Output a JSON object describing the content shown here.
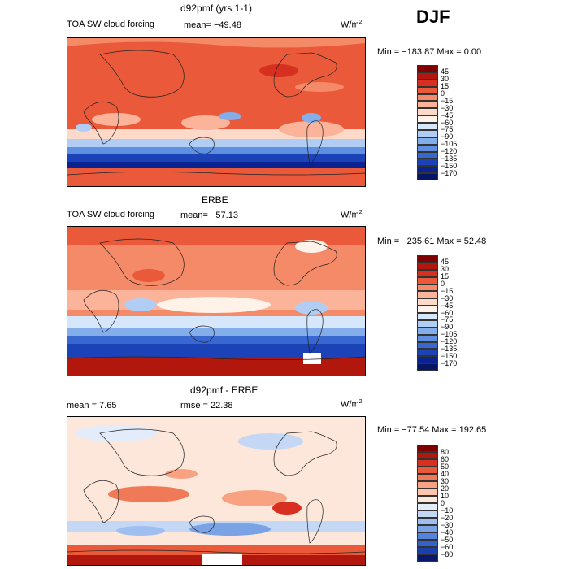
{
  "season": "DJF",
  "panels": [
    {
      "title": "d92pmf (yrs 1-1)",
      "variable": "TOA SW cloud forcing",
      "stat": "mean= −49.48",
      "units": "W/m",
      "units_sup": "2",
      "minmax": "Min = −183.87 Max =    0.00",
      "colorbar": {
        "ticks": [
          "45",
          "30",
          "15",
          "0",
          "−15",
          "−30",
          "−45",
          "−60",
          "−75",
          "−90",
          "−105",
          "−120",
          "−135",
          "−150",
          "−170"
        ],
        "colors": [
          "#7f0000",
          "#b2170d",
          "#d73020",
          "#ea5a3a",
          "#f58a68",
          "#fbb39a",
          "#fcd9c8",
          "#fff2e9",
          "#d6e6fb",
          "#b1cdf3",
          "#84aeea",
          "#5e8fe0",
          "#3868cf",
          "#1b43b7",
          "#0a2390",
          "#061665"
        ]
      }
    },
    {
      "title": "ERBE",
      "variable": "TOA SW cloud forcing",
      "stat": "mean= −57.13",
      "units": "W/m",
      "units_sup": "2",
      "minmax": "Min = −235.61 Max =  52.48",
      "colorbar": {
        "ticks": [
          "45",
          "30",
          "15",
          "0",
          "−15",
          "−30",
          "−45",
          "−60",
          "−75",
          "−90",
          "−105",
          "−120",
          "−135",
          "−150",
          "−170"
        ],
        "colors": [
          "#7f0000",
          "#b2170d",
          "#d73020",
          "#ea5a3a",
          "#f58a68",
          "#fbb39a",
          "#fcd9c8",
          "#fff2e9",
          "#d6e6fb",
          "#b1cdf3",
          "#84aeea",
          "#5e8fe0",
          "#3868cf",
          "#1b43b7",
          "#0a2390",
          "#061665"
        ]
      }
    },
    {
      "title": "d92pmf - ERBE",
      "stat": "mean =     7.65",
      "rmse": "rmse =    22.38",
      "units": "W/m",
      "units_sup": "2",
      "minmax": "Min = −77.54 Max = 192.65",
      "colorbar": {
        "ticks": [
          "80",
          "60",
          "50",
          "40",
          "30",
          "20",
          "10",
          "0",
          "−10",
          "−20",
          "−30",
          "−40",
          "−50",
          "−60",
          "−80"
        ],
        "colors": [
          "#7f0000",
          "#b2170d",
          "#d73020",
          "#ea5a3a",
          "#f07a58",
          "#f8a282",
          "#fcc6ae",
          "#fde6da",
          "#e2ecfb",
          "#c4d8f6",
          "#9ebfef",
          "#7aa3e6",
          "#5583db",
          "#3362c9",
          "#1b3fae",
          "#08186e"
        ]
      }
    }
  ]
}
